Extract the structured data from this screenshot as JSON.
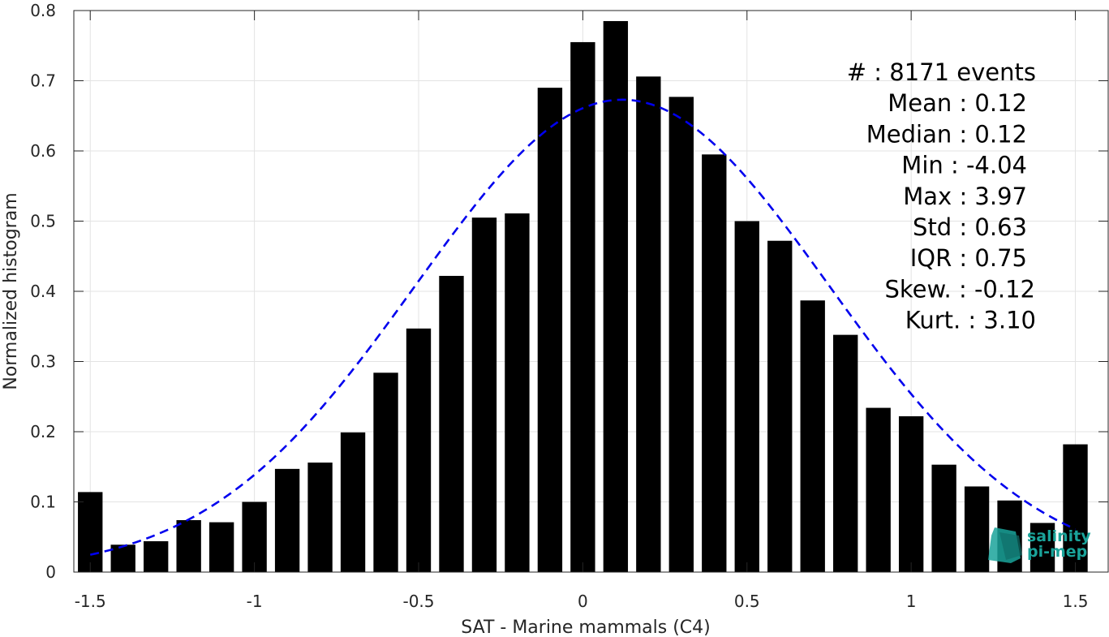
{
  "chart_data": {
    "type": "bar",
    "xlabel": "SAT - Marine mammals (C4)",
    "ylabel": "Normalized histogram",
    "xlim": [
      -1.55,
      1.6
    ],
    "ylim": [
      0,
      0.8
    ],
    "xticks": [
      -1.5,
      -1,
      -0.5,
      0,
      0.5,
      1,
      1.5
    ],
    "xtick_labels": [
      "-1.5",
      "-1",
      "-0.5",
      "0",
      "0.5",
      "1",
      "1.5"
    ],
    "yticks": [
      0,
      0.1,
      0.2,
      0.3,
      0.4,
      0.5,
      0.6,
      0.7,
      0.8
    ],
    "ytick_labels": [
      "0",
      "0.1",
      "0.2",
      "0.3",
      "0.4",
      "0.5",
      "0.6",
      "0.7",
      "0.8"
    ],
    "grid": true,
    "bar_color": "#000000",
    "bar_width": 0.075,
    "x": [
      -1.5,
      -1.4,
      -1.3,
      -1.2,
      -1.1,
      -1.0,
      -0.9,
      -0.8,
      -0.7,
      -0.6,
      -0.5,
      -0.4,
      -0.3,
      -0.2,
      -0.1,
      0.0,
      0.1,
      0.2,
      0.3,
      0.4,
      0.5,
      0.6,
      0.7,
      0.8,
      0.9,
      1.0,
      1.1,
      1.2,
      1.3,
      1.4,
      1.5
    ],
    "values": [
      0.114,
      0.039,
      0.044,
      0.074,
      0.071,
      0.1,
      0.147,
      0.156,
      0.199,
      0.284,
      0.347,
      0.422,
      0.505,
      0.511,
      0.69,
      0.755,
      0.785,
      0.706,
      0.677,
      0.595,
      0.5,
      0.472,
      0.387,
      0.338,
      0.234,
      0.222,
      0.153,
      0.122,
      0.102,
      0.07,
      0.182
    ],
    "fit": {
      "type": "gaussian",
      "mean": 0.12,
      "std": 0.63,
      "peak": 0.673,
      "x_range": [
        -1.5,
        1.5
      ],
      "color": "#0000ee",
      "style": "dashed"
    },
    "stats": [
      {
        "label": "#  : 8171 events"
      },
      {
        "label": "Mean : 0.12"
      },
      {
        "label": "Median : 0.12"
      },
      {
        "label": "Min : -4.04"
      },
      {
        "label": "Max : 3.97"
      },
      {
        "label": "Std : 0.63"
      },
      {
        "label": "IQR : 0.75"
      },
      {
        "label": "Skew. : -0.12"
      },
      {
        "label": "Kurt. : 3.10"
      }
    ],
    "logo": {
      "line1": "salinity",
      "line2": "pi-mep",
      "color": "#1aa39a"
    }
  }
}
